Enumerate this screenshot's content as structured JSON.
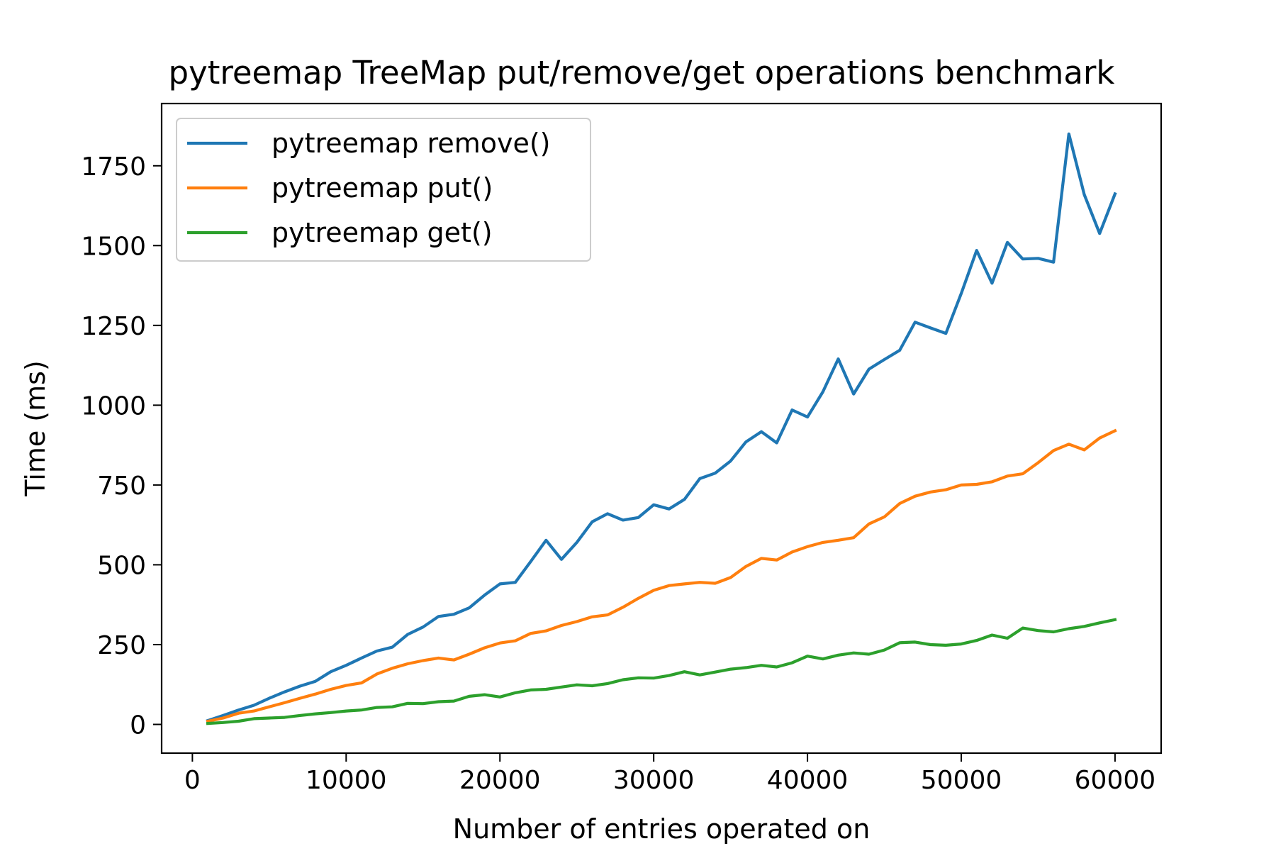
{
  "chart_data": {
    "type": "line",
    "title": "pytreemap TreeMap put/remove/get operations benchmark",
    "xlabel": "Number of entries operated on",
    "ylabel": "Time (ms)",
    "xlim": [
      -2000,
      63000
    ],
    "ylim": [
      -90,
      1945
    ],
    "xticks": [
      0,
      10000,
      20000,
      30000,
      40000,
      50000,
      60000
    ],
    "yticks": [
      0,
      250,
      500,
      750,
      1000,
      1250,
      1500,
      1750
    ],
    "grid": false,
    "legend_position": "upper left",
    "x": [
      1000,
      2000,
      3000,
      4000,
      5000,
      6000,
      7000,
      8000,
      9000,
      10000,
      11000,
      12000,
      13000,
      14000,
      15000,
      16000,
      17000,
      18000,
      19000,
      20000,
      21000,
      22000,
      23000,
      24000,
      25000,
      26000,
      27000,
      28000,
      29000,
      30000,
      31000,
      32000,
      33000,
      34000,
      35000,
      36000,
      37000,
      38000,
      39000,
      40000,
      41000,
      42000,
      43000,
      44000,
      45000,
      46000,
      47000,
      48000,
      49000,
      50000,
      51000,
      52000,
      53000,
      54000,
      55000,
      56000,
      57000,
      58000,
      59000,
      60000
    ],
    "series": [
      {
        "name": "pytreemap remove()",
        "color": "#1f77b4",
        "values": [
          12,
          28,
          45,
          60,
          82,
          102,
          120,
          135,
          165,
          185,
          208,
          230,
          242,
          282,
          305,
          338,
          345,
          365,
          405,
          440,
          445,
          510,
          577,
          517,
          570,
          635,
          660,
          640,
          648,
          688,
          675,
          705,
          770,
          787,
          825,
          885,
          917,
          882,
          985,
          963,
          1042,
          1145,
          1035,
          1113,
          1143,
          1172,
          1260,
          1242,
          1225,
          1350,
          1485,
          1382,
          1510,
          1458,
          1460,
          1448,
          1850,
          1660,
          1538,
          1662
        ]
      },
      {
        "name": "pytreemap put()",
        "color": "#ff7f0e",
        "values": [
          10,
          20,
          35,
          42,
          55,
          68,
          82,
          95,
          110,
          122,
          130,
          158,
          176,
          190,
          200,
          208,
          202,
          220,
          240,
          255,
          262,
          285,
          293,
          310,
          322,
          337,
          343,
          367,
          395,
          420,
          435,
          440,
          445,
          442,
          460,
          495,
          520,
          515,
          540,
          557,
          570,
          577,
          585,
          628,
          650,
          692,
          715,
          728,
          735,
          750,
          752,
          760,
          778,
          785,
          820,
          858,
          878,
          860,
          897,
          920
        ]
      },
      {
        "name": "pytreemap get()",
        "color": "#2ca02c",
        "values": [
          3,
          6,
          10,
          18,
          20,
          22,
          28,
          33,
          37,
          42,
          45,
          53,
          55,
          66,
          65,
          71,
          73,
          88,
          93,
          86,
          99,
          108,
          110,
          117,
          124,
          121,
          128,
          140,
          146,
          145,
          153,
          165,
          155,
          164,
          173,
          178,
          185,
          180,
          193,
          214,
          205,
          217,
          224,
          220,
          233,
          256,
          258,
          250,
          248,
          252,
          263,
          280,
          270,
          302,
          294,
          290,
          300,
          307,
          318,
          328
        ]
      }
    ]
  }
}
